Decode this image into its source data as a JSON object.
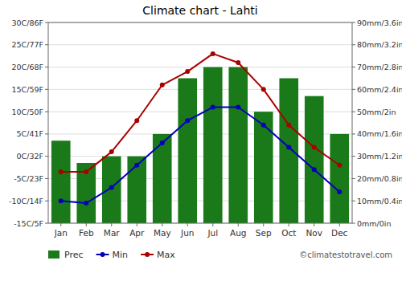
{
  "chart_data": {
    "type": "bar",
    "title": "Climate chart - Lahti",
    "categories": [
      "Jan",
      "Feb",
      "Mar",
      "Apr",
      "May",
      "Jun",
      "Jul",
      "Aug",
      "Sep",
      "Oct",
      "Nov",
      "Dec"
    ],
    "series": [
      {
        "name": "Prec",
        "type": "bar",
        "axis": "y2",
        "color": "#1a7a1a",
        "values": [
          37,
          27,
          30,
          30,
          40,
          65,
          70,
          70,
          50,
          65,
          57,
          40
        ]
      },
      {
        "name": "Min",
        "type": "line",
        "marker": "circle",
        "color": "#0000bb",
        "values": [
          -10,
          -10.5,
          -7,
          -2,
          3,
          8,
          11,
          11,
          7,
          2,
          -3,
          -8
        ]
      },
      {
        "name": "Max",
        "type": "line",
        "marker": "circle",
        "color": "#aa0000",
        "values": [
          -3.5,
          -3.5,
          1,
          8,
          16,
          19,
          23,
          21,
          15,
          7,
          2,
          -2
        ]
      }
    ],
    "ylim": [
      -15,
      30
    ],
    "yticks": [
      {
        "value": -15,
        "label": "-15C/5F"
      },
      {
        "value": -10,
        "label": "-10C/14F"
      },
      {
        "value": -5,
        "label": "-5C/23F"
      },
      {
        "value": 0,
        "label": "0C/32F"
      },
      {
        "value": 5,
        "label": "5C/41F"
      },
      {
        "value": 10,
        "label": "10C/50F"
      },
      {
        "value": 15,
        "label": "15C/59F"
      },
      {
        "value": 20,
        "label": "20C/68F"
      },
      {
        "value": 25,
        "label": "25C/77F"
      },
      {
        "value": 30,
        "label": "30C/86F"
      }
    ],
    "y2lim": [
      0,
      90
    ],
    "y2ticks": [
      {
        "value": 0,
        "label": "0mm/0in"
      },
      {
        "value": 10,
        "label": "10mm/0.4in"
      },
      {
        "value": 20,
        "label": "20mm/0.8in"
      },
      {
        "value": 30,
        "label": "30mm/1.2in"
      },
      {
        "value": 40,
        "label": "40mm/1.6in"
      },
      {
        "value": 50,
        "label": "50mm/2in"
      },
      {
        "value": 60,
        "label": "60mm/2.4in"
      },
      {
        "value": 70,
        "label": "70mm/2.8in"
      },
      {
        "value": 80,
        "label": "80mm/3.2in"
      },
      {
        "value": 90,
        "label": "90mm/3.6in"
      }
    ],
    "grid": true,
    "legend": "bottom",
    "annotations": [
      "©climatestotravel.com"
    ]
  }
}
